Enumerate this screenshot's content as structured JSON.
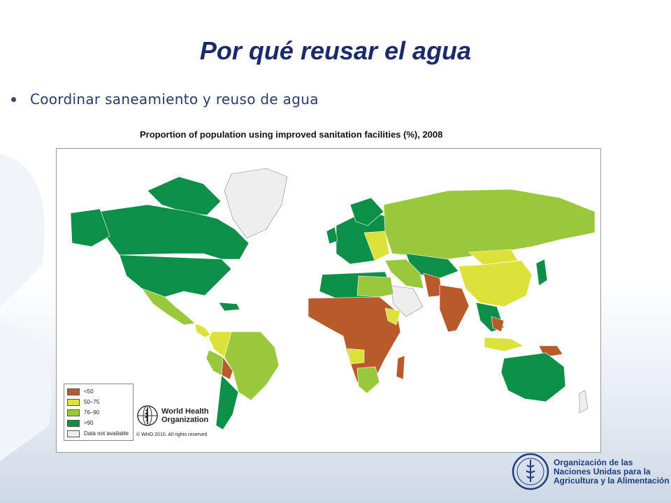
{
  "slide": {
    "title": "Por qué reusar el agua",
    "bullet": "Coordinar saneamiento y reuso de agua"
  },
  "map": {
    "title": "Proportion of population using improved sanitation facilities (%), 2008",
    "legend": [
      {
        "label": "<50",
        "color": "#b85a2a"
      },
      {
        "label": "50–75",
        "color": "#dde23a"
      },
      {
        "label": "76–90",
        "color": "#9ac83c"
      },
      {
        "label": ">90",
        "color": "#0c9048"
      },
      {
        "label": "Data not available",
        "color": "#eeeeee"
      }
    ],
    "credit": {
      "organization_line1": "World Health",
      "organization_line2": "Organization",
      "copyright": "© WHO 2010. All rights reserved"
    }
  },
  "footer": {
    "fao_line1": "Organización de las",
    "fao_line2": "Naciones Unidas para la",
    "fao_line3": "Agricultura y la Alimentación"
  }
}
